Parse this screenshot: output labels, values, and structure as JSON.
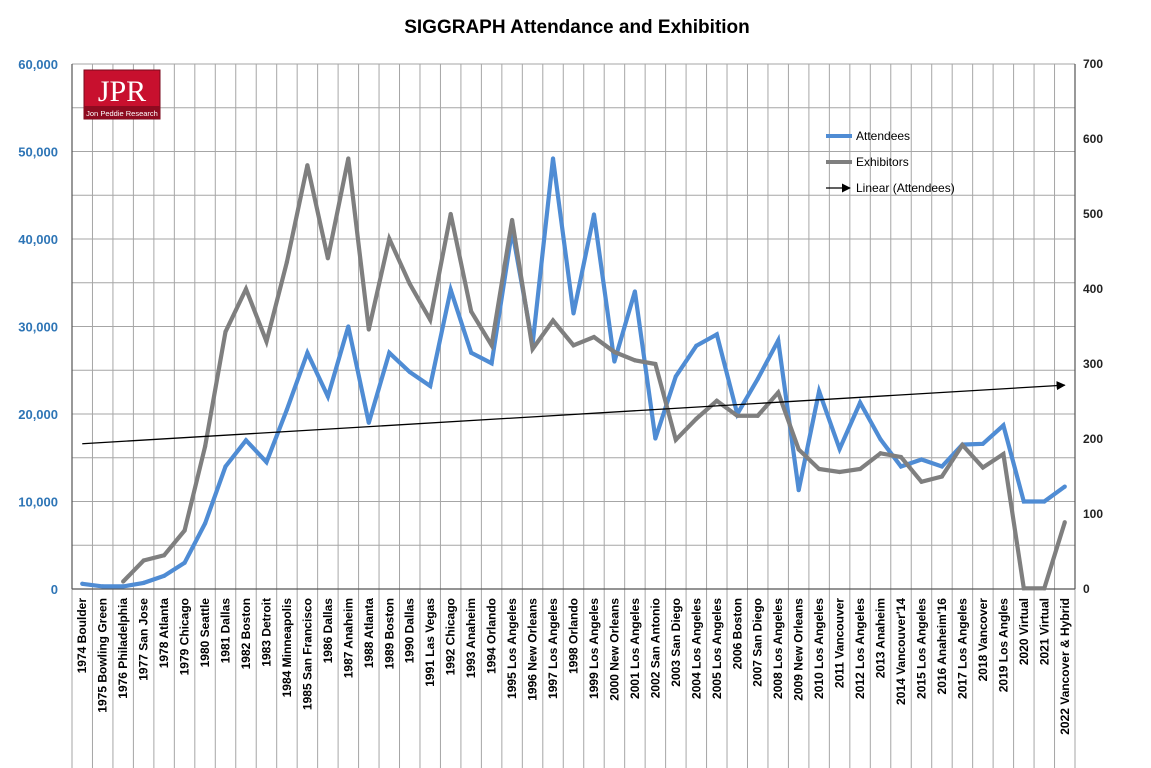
{
  "logo": {
    "text": "JPR",
    "subtitle": "Jon Peddie Research"
  },
  "chart_data": {
    "type": "line",
    "title": "SIGGRAPH Attendance and Exhibition",
    "xlabel": "",
    "ylabel": "",
    "categories": [
      "1974  Boulder",
      "1975  Bowling Green",
      "1976  Philadelphia",
      "1977  San Jose",
      "1978  Atlanta",
      "1979  Chicago",
      "1980  Seattle",
      "1981  Dallas",
      "1982  Boston",
      "1983  Detroit",
      "1984  Minneapolis",
      "1985  San Francisco",
      "1986  Dallas",
      "1987  Anaheim",
      "1988  Atlanta",
      "1989  Boston",
      "1990  Dallas",
      "1991  Las Vegas",
      "1992  Chicago",
      "1993  Anaheim",
      "1994  Orlando",
      "1995  Los Angeles",
      "1996  New Orleans",
      "1997  Los Angeles",
      "1998  Orlando",
      "1999  Los Angeles",
      "2000  New Orleans",
      "2001  Los Angeles",
      "2002  San Antonio",
      "2003  San Diego",
      "2004  Los Angeles",
      "2005  Los Angeles",
      "2006  Boston",
      "2007  San Diego",
      "2008  Los Angeles",
      "2009  New Orleans",
      "2010  Los Angeles",
      "2011  Vancouver",
      "2012  Los Angeles",
      "2013  Anaheim",
      "2014  Vancouver'14",
      "2015  Los Angeles",
      "2016  Anaheim'16",
      "2017  Los Angeles",
      "2018  Vancover",
      "2019  Los Angles",
      "2020  Virtual",
      "2021  Virtual",
      "2022  Vancover & Hybrid"
    ],
    "y_left": {
      "ylim": [
        0,
        60000
      ],
      "ticks": [
        "0",
        "10,000",
        "20,000",
        "30,000",
        "40,000",
        "50,000",
        "60,000"
      ]
    },
    "y_right": {
      "ylim": [
        0,
        700
      ],
      "ticks": [
        "0",
        "100",
        "200",
        "300",
        "400",
        "500",
        "600",
        "700"
      ]
    },
    "series": [
      {
        "name": "Attendees",
        "axis": "left",
        "color": "#4F8CD4",
        "values": [
          600,
          300,
          300,
          700,
          1500,
          3000,
          7500,
          14000,
          17000,
          14500,
          20500,
          27000,
          22000,
          30000,
          19000,
          27000,
          24800,
          23200,
          34200,
          27000,
          25800,
          41000,
          28000,
          49200,
          31500,
          42800,
          26000,
          34000,
          17200,
          24300,
          27800,
          29100,
          20000,
          24000,
          28400,
          11300,
          22600,
          16000,
          21300,
          17100,
          14000,
          14800,
          14000,
          16500,
          16600,
          18700,
          10000,
          10000,
          11700
        ]
      },
      {
        "name": "Exhibitors",
        "axis": "right",
        "color": "#7F7F7F",
        "values": [
          null,
          null,
          10,
          38,
          45,
          78,
          190,
          343,
          400,
          330,
          436,
          565,
          441,
          574,
          346,
          467,
          407,
          359,
          500,
          370,
          325,
          492,
          320,
          358,
          325,
          336,
          316,
          305,
          300,
          199,
          227,
          251,
          231,
          231,
          262,
          186,
          160,
          156,
          160,
          181,
          176,
          143,
          150,
          192,
          162,
          180,
          1,
          1,
          89
        ]
      },
      {
        "name": "Linear (Attendees)",
        "axis": "left",
        "color": "#000000",
        "trend": true,
        "from": 16600,
        "to": 23300
      }
    ],
    "grid": true,
    "legend": "top-right"
  }
}
